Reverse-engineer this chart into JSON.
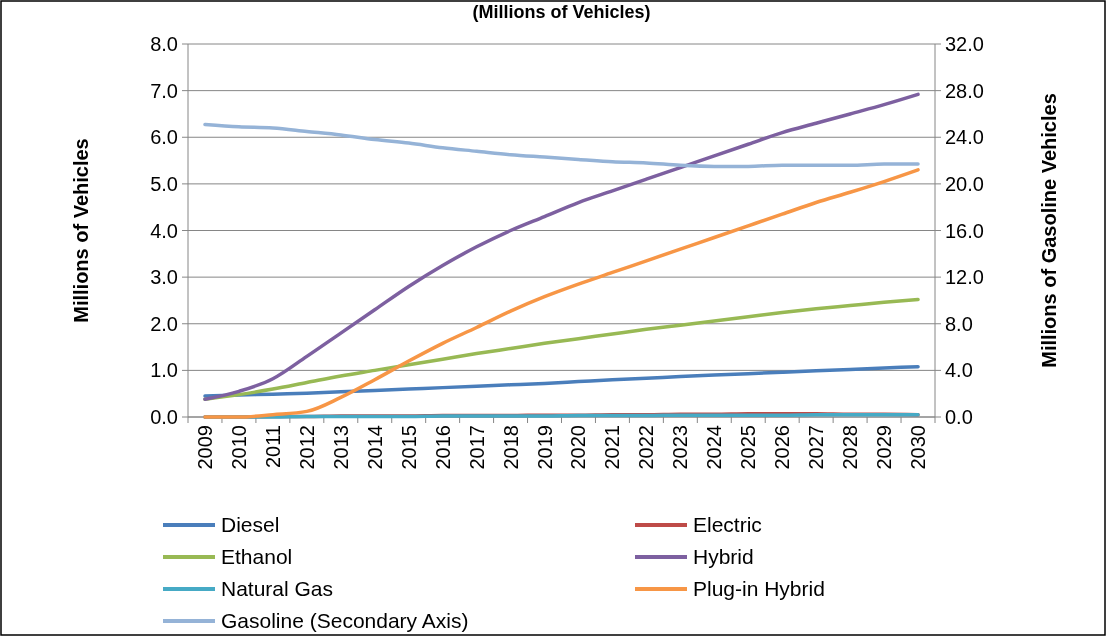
{
  "chart_data": {
    "type": "line",
    "title": "(Millions of Vehicles)",
    "ylabel": "Millions of Vehicles",
    "y2label": "Millions of Gasoline Vehicles",
    "categories": [
      "2009",
      "2010",
      "2011",
      "2012",
      "2013",
      "2014",
      "2015",
      "2016",
      "2017",
      "2018",
      "2019",
      "2020",
      "2021",
      "2022",
      "2023",
      "2024",
      "2025",
      "2026",
      "2027",
      "2028",
      "2029",
      "2030"
    ],
    "series": [
      {
        "name": "Diesel",
        "color": "#4a7ebb",
        "values": [
          0.45,
          0.47,
          0.49,
          0.51,
          0.54,
          0.57,
          0.6,
          0.63,
          0.66,
          0.69,
          0.72,
          0.76,
          0.8,
          0.83,
          0.87,
          0.9,
          0.93,
          0.96,
          0.99,
          1.02,
          1.05,
          1.08
        ]
      },
      {
        "name": "Electric",
        "color": "#be4b48",
        "values": [
          0.0,
          0.0,
          0.01,
          0.01,
          0.02,
          0.02,
          0.02,
          0.03,
          0.03,
          0.03,
          0.04,
          0.04,
          0.05,
          0.05,
          0.06,
          0.06,
          0.07,
          0.07,
          0.07,
          0.06,
          0.06,
          0.05
        ]
      },
      {
        "name": "Ethanol",
        "color": "#98b954",
        "values": [
          0.38,
          0.48,
          0.6,
          0.74,
          0.88,
          1.0,
          1.12,
          1.24,
          1.36,
          1.47,
          1.58,
          1.68,
          1.78,
          1.88,
          1.97,
          2.06,
          2.15,
          2.24,
          2.32,
          2.39,
          2.46,
          2.52
        ]
      },
      {
        "name": "Hybrid",
        "color": "#7d60a0",
        "values": [
          0.38,
          0.55,
          0.82,
          1.3,
          1.8,
          2.3,
          2.8,
          3.25,
          3.65,
          4.0,
          4.3,
          4.6,
          4.85,
          5.1,
          5.35,
          5.6,
          5.85,
          6.1,
          6.3,
          6.5,
          6.7,
          6.92
        ]
      },
      {
        "name": "Natural Gas",
        "color": "#46aac5",
        "values": [
          0.0,
          0.0,
          0.0,
          0.01,
          0.01,
          0.01,
          0.01,
          0.02,
          0.02,
          0.02,
          0.02,
          0.03,
          0.03,
          0.03,
          0.04,
          0.04,
          0.04,
          0.04,
          0.05,
          0.05,
          0.05,
          0.05
        ]
      },
      {
        "name": "Plug-in Hybrid",
        "color": "#f79646",
        "values": [
          0.0,
          0.0,
          0.05,
          0.12,
          0.42,
          0.8,
          1.2,
          1.58,
          1.92,
          2.27,
          2.58,
          2.85,
          3.1,
          3.35,
          3.6,
          3.85,
          4.1,
          4.35,
          4.6,
          4.82,
          5.05,
          5.3
        ]
      },
      {
        "name": "Gasoline (Secondary Axis)",
        "color": "#95b3d7",
        "axis": "y2",
        "values": [
          25.1,
          24.9,
          24.8,
          24.5,
          24.2,
          23.8,
          23.5,
          23.1,
          22.8,
          22.5,
          22.3,
          22.1,
          21.9,
          21.8,
          21.6,
          21.5,
          21.5,
          21.6,
          21.6,
          21.6,
          21.7,
          21.7
        ]
      }
    ],
    "ylim": [
      0,
      8
    ],
    "yticks": [
      {
        "value": 0,
        "label": "0.0"
      },
      {
        "value": 1,
        "label": "1.0"
      },
      {
        "value": 2,
        "label": "2.0"
      },
      {
        "value": 3,
        "label": "3.0"
      },
      {
        "value": 4,
        "label": "4.0"
      },
      {
        "value": 5,
        "label": "5.0"
      },
      {
        "value": 6,
        "label": "6.0"
      },
      {
        "value": 7,
        "label": "7.0"
      },
      {
        "value": 8,
        "label": "8.0"
      }
    ],
    "y2lim": [
      0,
      32
    ],
    "y2ticks": [
      {
        "value": 0,
        "label": "0.0"
      },
      {
        "value": 4,
        "label": "4.0"
      },
      {
        "value": 8,
        "label": "8.0"
      },
      {
        "value": 12,
        "label": "12.0"
      },
      {
        "value": 16,
        "label": "16.0"
      },
      {
        "value": 20,
        "label": "20.0"
      },
      {
        "value": 24,
        "label": "24.0"
      },
      {
        "value": 28,
        "label": "28.0"
      },
      {
        "value": 32,
        "label": "32.0"
      }
    ],
    "grid": "y",
    "legend": "bottom",
    "marker": "none",
    "line_style": "solid"
  }
}
